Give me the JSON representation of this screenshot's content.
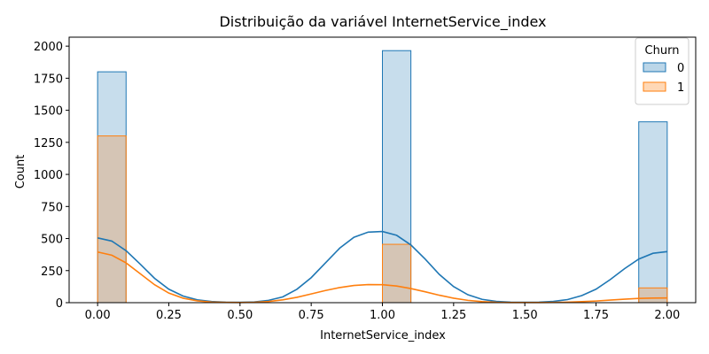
{
  "chart_data": {
    "type": "bar",
    "title": "Distribuição da variável InternetService_index",
    "xlabel": "InternetService_index",
    "ylabel": "Count",
    "xlim": [
      -0.1,
      2.1
    ],
    "ylim": [
      0,
      2070
    ],
    "x_ticks": [
      0.0,
      0.25,
      0.5,
      0.75,
      1.0,
      1.25,
      1.5,
      1.75,
      2.0
    ],
    "x_tick_labels": [
      "0.00",
      "0.25",
      "0.50",
      "0.75",
      "1.00",
      "1.25",
      "1.50",
      "1.75",
      "2.00"
    ],
    "y_ticks": [
      0,
      250,
      500,
      750,
      1000,
      1250,
      1500,
      1750,
      2000
    ],
    "y_tick_labels": [
      "0",
      "250",
      "500",
      "750",
      "1000",
      "1250",
      "1500",
      "1750",
      "2000"
    ],
    "bin_width": 0.1,
    "legend": {
      "title": "Churn",
      "placement": "top-right"
    },
    "series": [
      {
        "name": "0",
        "color": "#1f77b4",
        "bins": [
          {
            "x0": 0.0,
            "x1": 0.1,
            "count": 1800
          },
          {
            "x0": 1.0,
            "x1": 1.1,
            "count": 1965
          },
          {
            "x0": 1.9,
            "x1": 2.0,
            "count": 1410
          }
        ],
        "kde": {
          "x": [
            0.0,
            0.05,
            0.1,
            0.15,
            0.2,
            0.25,
            0.3,
            0.35,
            0.4,
            0.45,
            0.5,
            0.55,
            0.6,
            0.65,
            0.7,
            0.75,
            0.8,
            0.85,
            0.9,
            0.95,
            1.0,
            1.05,
            1.1,
            1.15,
            1.2,
            1.25,
            1.3,
            1.35,
            1.4,
            1.45,
            1.5,
            1.55,
            1.6,
            1.65,
            1.7,
            1.75,
            1.8,
            1.85,
            1.9,
            1.95,
            2.0
          ],
          "y": [
            505,
            480,
            405,
            300,
            190,
            105,
            52,
            22,
            9,
            4,
            3,
            6,
            18,
            45,
            105,
            195,
            310,
            425,
            510,
            550,
            555,
            525,
            450,
            340,
            220,
            125,
            62,
            26,
            10,
            4,
            3,
            4,
            10,
            24,
            55,
            105,
            180,
            265,
            340,
            385,
            398
          ]
        }
      },
      {
        "name": "1",
        "color": "#ff7f0e",
        "bins": [
          {
            "x0": 0.0,
            "x1": 0.1,
            "count": 1300
          },
          {
            "x0": 1.0,
            "x1": 1.1,
            "count": 455
          },
          {
            "x0": 1.9,
            "x1": 2.0,
            "count": 115
          }
        ],
        "kde": {
          "x": [
            0.0,
            0.05,
            0.1,
            0.15,
            0.2,
            0.25,
            0.3,
            0.35,
            0.4,
            0.45,
            0.5,
            0.55,
            0.6,
            0.65,
            0.7,
            0.75,
            0.8,
            0.85,
            0.9,
            0.95,
            1.0,
            1.05,
            1.1,
            1.15,
            1.2,
            1.25,
            1.3,
            1.35,
            1.4,
            1.45,
            1.5,
            1.55,
            1.6,
            1.65,
            1.7,
            1.75,
            1.8,
            1.85,
            1.9,
            1.95,
            2.0
          ],
          "y": [
            395,
            370,
            310,
            225,
            140,
            75,
            35,
            14,
            5,
            2,
            1,
            3,
            9,
            22,
            42,
            68,
            95,
            118,
            134,
            141,
            140,
            130,
            110,
            85,
            58,
            35,
            18,
            8,
            3,
            1,
            1,
            1,
            2,
            4,
            8,
            13,
            20,
            27,
            33,
            36,
            37
          ]
        }
      }
    ]
  }
}
